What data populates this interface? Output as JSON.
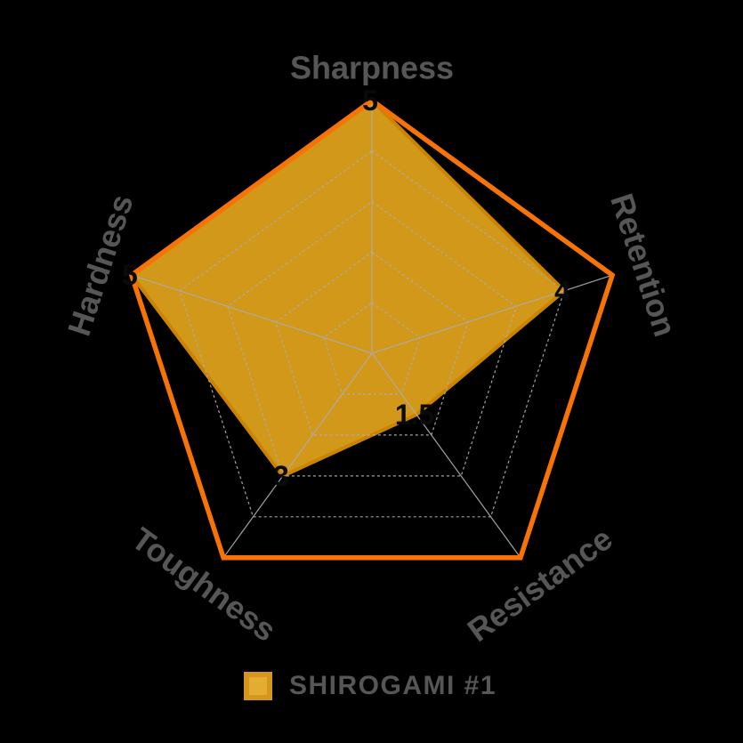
{
  "chart_data": {
    "type": "radar",
    "title": "",
    "categories": [
      "Sharpness",
      "Retention",
      "Resistance",
      "Toughness",
      "Hardness"
    ],
    "series": [
      {
        "name": "SHIROGAMI #1",
        "values": [
          5,
          4,
          1.5,
          3,
          5
        ],
        "value_labels": [
          "5",
          "4",
          "1.5",
          "3",
          "5"
        ],
        "fill_color": "#D2981A",
        "stroke_color": "#CC8400"
      }
    ],
    "scale": {
      "min": 0,
      "max": 5,
      "rings": [
        1,
        2,
        3,
        4,
        5
      ]
    },
    "grid": {
      "ring_color": "#ACACAC",
      "spoke_color": "#ACACAC",
      "outer_ring_color": "#F87306"
    },
    "axis_label_color": "#565656",
    "value_label_color": "#0A0A0A",
    "legend": {
      "label": "SHIROGAMI #1",
      "swatch_fill": "#E5AC33",
      "swatch_border": "#D5961C",
      "text_color": "#565656"
    }
  }
}
